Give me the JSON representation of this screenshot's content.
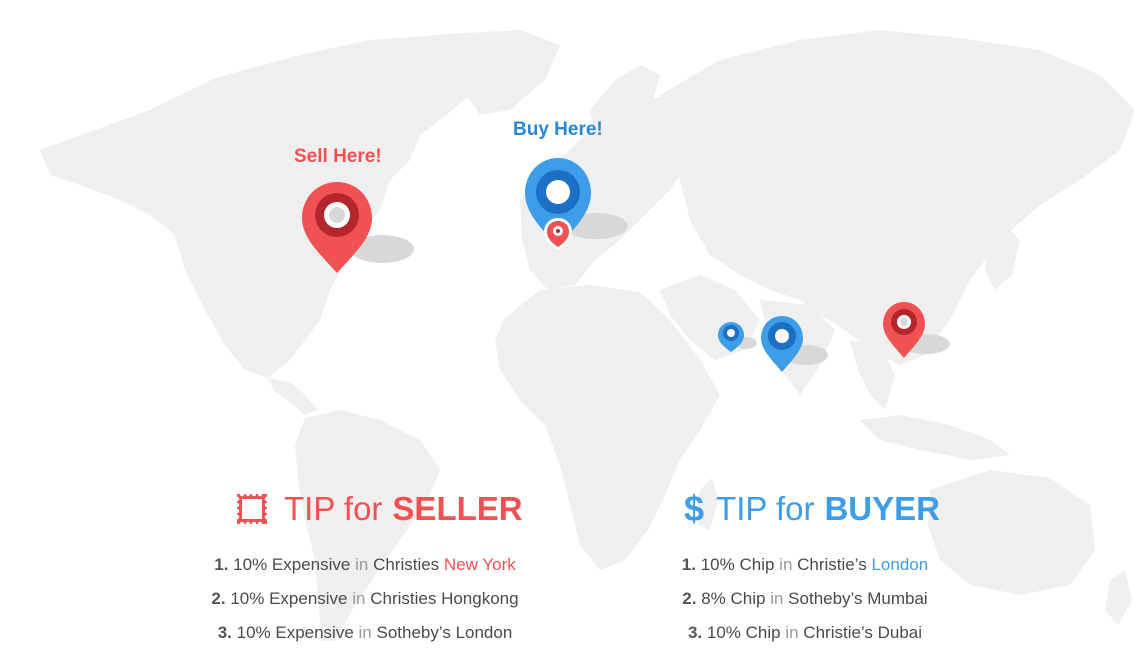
{
  "map": {
    "sell_label": "Sell Here!",
    "buy_label": "Buy Here!"
  },
  "colors": {
    "seller_accent": "#f05253",
    "buyer_accent": "#3d9de8",
    "map_land": "#efefef"
  },
  "seller": {
    "icon": "stamp-icon",
    "title_prefix": "TIP for",
    "title_emphasis": "SELLER",
    "tips": [
      {
        "num": "1.",
        "text": "10% Expensive",
        "in": "in",
        "place": "Christies",
        "highlight": "New York"
      },
      {
        "num": "2.",
        "text": "10% Expensive",
        "in": "in",
        "place": "Christies Hongkong",
        "highlight": ""
      },
      {
        "num": "3.",
        "text": "10% Expensive",
        "in": "in",
        "place": "Sotheby’s London",
        "highlight": ""
      }
    ]
  },
  "buyer": {
    "icon": "dollar-icon",
    "icon_glyph": "$",
    "title_prefix": "TIP for",
    "title_emphasis": "BUYER",
    "tips": [
      {
        "num": "1.",
        "text": "10% Chip",
        "in": "in",
        "place": "Christie’s",
        "highlight": "London"
      },
      {
        "num": "2.",
        "text": "8% Chip",
        "in": "in",
        "place": "Sotheby’s Mumbai",
        "highlight": ""
      },
      {
        "num": "3.",
        "text": "10% Chip",
        "in": "in",
        "place": "Christie’s  Dubai",
        "highlight": ""
      }
    ]
  }
}
